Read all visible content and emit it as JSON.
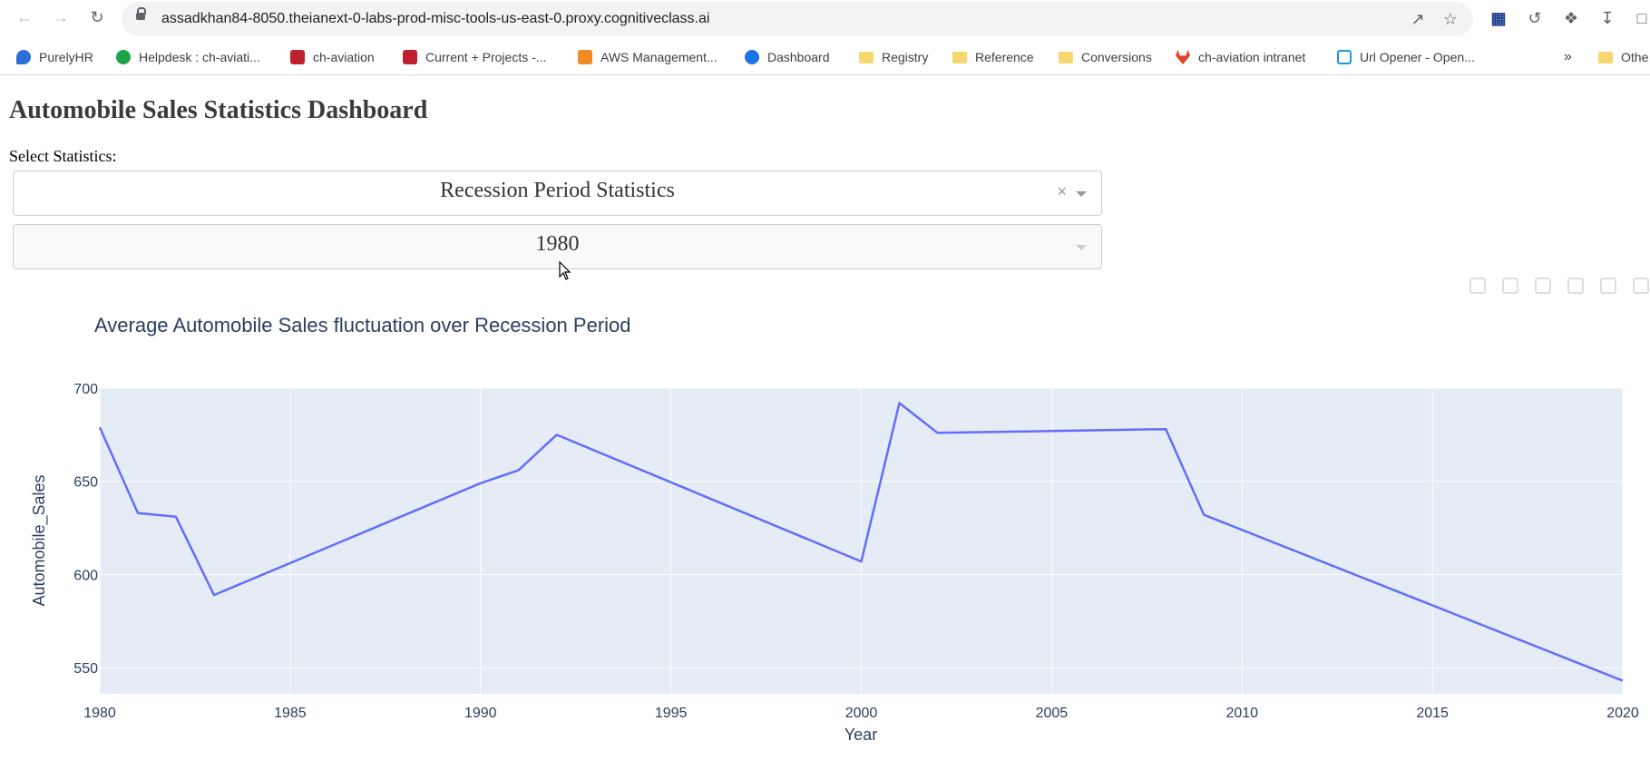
{
  "browser": {
    "url": "assadkhan84-8050.theianext-0-labs-prod-misc-tools-us-east-0.proxy.cognitiveclass.ai",
    "bookmarks": [
      {
        "label": "PurelyHR",
        "icon": "purelyhr-icon",
        "color": "#2b6fd6"
      },
      {
        "label": "Helpdesk : ch-aviati...",
        "icon": "helpdesk-icon",
        "color": "#1fa34a"
      },
      {
        "label": "ch-aviation",
        "icon": "ch-aviation-icon",
        "color": "#c0202e"
      },
      {
        "label": "Current + Projects -...",
        "icon": "ch-aviation-icon",
        "color": "#c0202e"
      },
      {
        "label": "AWS Management...",
        "icon": "aws-cube-icon",
        "color": "#f08a24"
      },
      {
        "label": "Dashboard",
        "icon": "pulse-icon",
        "color": "#1a73e8"
      },
      {
        "label": "Registry",
        "icon": "folder-icon",
        "color": "#f6d86e"
      },
      {
        "label": "Reference",
        "icon": "folder-icon",
        "color": "#f6d86e"
      },
      {
        "label": "Conversions",
        "icon": "folder-icon",
        "color": "#f6d86e"
      },
      {
        "label": "ch-aviation intranet",
        "icon": "gitlab-icon",
        "color": "#e24329"
      },
      {
        "label": "Url Opener - Open...",
        "icon": "url-opener-icon",
        "color": "#1a9ad6"
      }
    ],
    "more_label": "»",
    "other_label": "Othe"
  },
  "page": {
    "title": "Automobile Sales Statistics Dashboard",
    "select_label": "Select Statistics:",
    "dropdown_statistics": {
      "value": "Recession Period Statistics",
      "clear": "×"
    },
    "dropdown_year": {
      "value": "1980"
    }
  },
  "colors": {
    "line": "#636efa",
    "plot_bg": "#e5ecf6",
    "grid": "#ffffff",
    "text": "#2a3f5f"
  },
  "chart_data": {
    "type": "line",
    "title": "Average Automobile Sales fluctuation over Recession Period",
    "xlabel": "Year",
    "ylabel": "Automobile_Sales",
    "xlim": [
      1980,
      2020
    ],
    "ylim": [
      536,
      700
    ],
    "x_ticks": [
      1980,
      1985,
      1990,
      1995,
      2000,
      2005,
      2010,
      2015,
      2020
    ],
    "y_ticks": [
      550,
      600,
      650,
      700
    ],
    "grid": true,
    "series": [
      {
        "x": [
          1980,
          1981,
          1982,
          1983,
          1990,
          1991,
          1992,
          2000,
          2001,
          2002,
          2008,
          2009,
          2020
        ],
        "y": [
          679,
          633,
          631,
          589,
          649,
          656,
          675,
          607,
          692,
          676,
          678,
          632,
          543
        ]
      }
    ]
  }
}
